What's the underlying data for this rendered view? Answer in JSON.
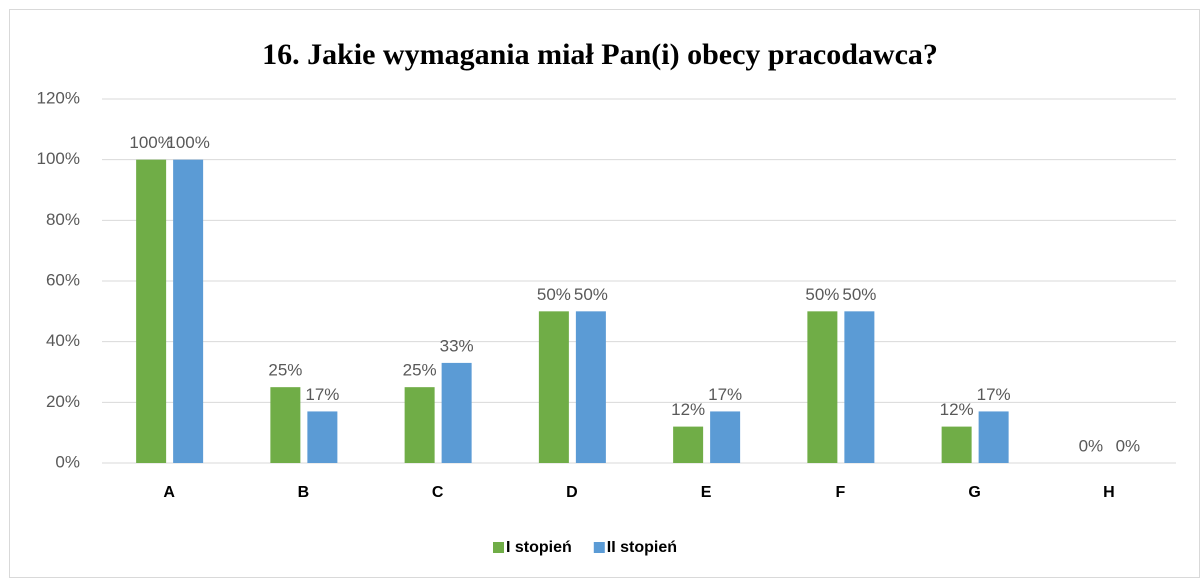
{
  "chart_data": {
    "type": "bar",
    "title": "16.  Jakie wymagania miał Pan(i) obecy pracodawca?",
    "categories": [
      "A",
      "B",
      "C",
      "D",
      "E",
      "F",
      "G",
      "H"
    ],
    "series": [
      {
        "name": "I stopień",
        "color": "#70ad47",
        "values": [
          100,
          25,
          25,
          50,
          12,
          50,
          12,
          0
        ],
        "value_labels": [
          "100%",
          "25%",
          "25%",
          "50%",
          "12%",
          "50%",
          "12%",
          "0%"
        ]
      },
      {
        "name": "II stopień",
        "color": "#5b9bd5",
        "values": [
          100,
          17,
          33,
          50,
          17,
          50,
          17,
          0
        ],
        "value_labels": [
          "100%",
          "17%",
          "33%",
          "50%",
          "17%",
          "50%",
          "17%",
          "0%"
        ]
      }
    ],
    "ylim": [
      0,
      120
    ],
    "yticks": [
      {
        "value": 0,
        "label": "0%"
      },
      {
        "value": 20,
        "label": "20%"
      },
      {
        "value": 40,
        "label": "40%"
      },
      {
        "value": 60,
        "label": "60%"
      },
      {
        "value": 80,
        "label": "80%"
      },
      {
        "value": 100,
        "label": "100%"
      },
      {
        "value": 120,
        "label": "120%"
      }
    ],
    "grid": true,
    "legend": "bottom"
  }
}
